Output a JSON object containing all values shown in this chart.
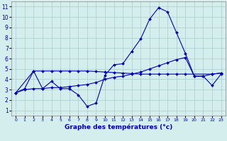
{
  "background_color": "#d4eeee",
  "grid_color": "#aacccc",
  "line_color": "#0000bb",
  "xlabel": "Graphe des températures (°c)",
  "xlim": [
    -0.5,
    23.5
  ],
  "ylim": [
    0.5,
    11.5
  ],
  "curve1_x": [
    0,
    1,
    2,
    3,
    4,
    5,
    6,
    7,
    8,
    9,
    10,
    11,
    12,
    13,
    14,
    15,
    16,
    17,
    18,
    19,
    20,
    21,
    22,
    23
  ],
  "curve1_y": [
    2.7,
    3.1,
    4.8,
    3.1,
    3.8,
    3.1,
    3.1,
    2.5,
    1.4,
    1.7,
    4.4,
    5.4,
    5.5,
    6.7,
    7.9,
    9.8,
    10.9,
    10.5,
    8.5,
    6.5,
    4.3,
    4.3,
    3.4,
    4.5
  ],
  "curve2_x": [
    0,
    1,
    2,
    3,
    4,
    5,
    6,
    7,
    8,
    9,
    10,
    11,
    12,
    13,
    14,
    15,
    16,
    17,
    18,
    19,
    20,
    21,
    22,
    23
  ],
  "curve2_y": [
    2.7,
    3.0,
    3.1,
    3.1,
    3.2,
    3.2,
    3.3,
    3.4,
    3.5,
    3.7,
    4.0,
    4.2,
    4.3,
    4.5,
    4.7,
    5.0,
    5.3,
    5.6,
    5.9,
    6.1,
    4.3,
    4.3,
    4.5,
    4.6
  ],
  "curve3_x": [
    0,
    2,
    3,
    4,
    5,
    6,
    7,
    8,
    9,
    10,
    11,
    12,
    13,
    14,
    15,
    16,
    17,
    18,
    19,
    22,
    23
  ],
  "curve3_y": [
    2.7,
    4.8,
    4.8,
    4.8,
    4.8,
    4.8,
    4.8,
    4.8,
    4.75,
    4.7,
    4.65,
    4.6,
    4.55,
    4.5,
    4.5,
    4.5,
    4.5,
    4.5,
    4.5,
    4.5,
    4.6
  ]
}
